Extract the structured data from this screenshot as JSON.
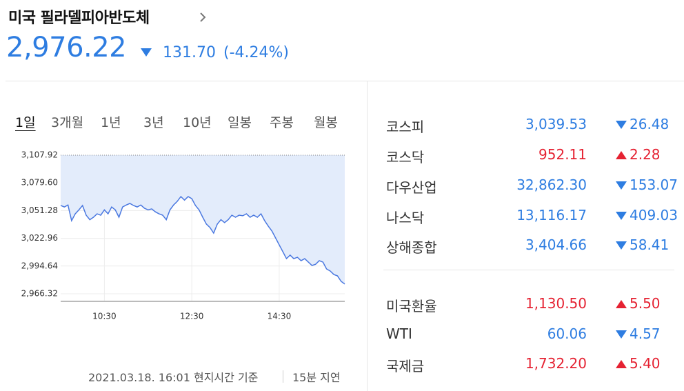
{
  "header": {
    "title": "미국 필라델피아반도체",
    "price": "2,976.22",
    "change": "131.70",
    "change_pct": "(-4.24%)",
    "direction": "down"
  },
  "tabs": [
    "1일",
    "3개월",
    "1년",
    "3년",
    "10년",
    "일봉",
    "주봉",
    "월봉"
  ],
  "chart_data": {
    "type": "line",
    "color": "#4a78e0",
    "fill": "#e3ecfb",
    "grid": true,
    "reference_line": 3107.92,
    "categories": [
      null,
      null,
      null,
      null,
      null,
      null,
      null,
      null,
      null,
      null,
      null,
      null,
      "10:30",
      null,
      null,
      null,
      null,
      null,
      null,
      null,
      null,
      null,
      null,
      null,
      null,
      null,
      null,
      null,
      null,
      null,
      null,
      null,
      null,
      null,
      null,
      null,
      "12:30",
      null,
      null,
      null,
      null,
      null,
      null,
      null,
      null,
      null,
      null,
      null,
      null,
      null,
      null,
      null,
      null,
      null,
      null,
      null,
      null,
      null,
      null,
      null,
      "14:30",
      null,
      null,
      null,
      null,
      null,
      null,
      null,
      null,
      null,
      null,
      null,
      null,
      null,
      null,
      null,
      null,
      null,
      null
    ],
    "values": [
      3056.5,
      3055,
      3057,
      3041,
      3048,
      3052,
      3056.5,
      3046.6,
      3042,
      3044.5,
      3048,
      3046.6,
      3052,
      3048,
      3055,
      3052,
      3044.5,
      3055,
      3057,
      3058.6,
      3056.5,
      3055,
      3057,
      3053.7,
      3052,
      3053,
      3050,
      3048,
      3046.6,
      3042,
      3052,
      3057,
      3060.7,
      3065.6,
      3062,
      3065.6,
      3063.5,
      3056.5,
      3052,
      3044.5,
      3037.5,
      3034,
      3028.3,
      3037.5,
      3042,
      3039,
      3042,
      3046.6,
      3044.5,
      3046.6,
      3046,
      3048,
      3044.5,
      3046.6,
      3044.5,
      3048,
      3041,
      3035.4,
      3030.4,
      3023.4,
      3016.3,
      3009.3,
      3002.2,
      3005.8,
      3002.2,
      3003.6,
      3000.1,
      3002.2,
      2998.7,
      2995.2,
      2996.5,
      3000.1,
      2998.7,
      2991.7,
      2989.6,
      2986,
      2984.6,
      2979,
      2976.22
    ],
    "ylim": [
      2958.57,
      3107.92
    ],
    "yticks": [
      {
        "value": 2966.32,
        "label": "2,966.32"
      },
      {
        "value": 2994.64,
        "label": "2,994.64"
      },
      {
        "value": 3022.96,
        "label": "3,022.96"
      },
      {
        "value": 3051.28,
        "label": "3,051.28"
      },
      {
        "value": 3079.6,
        "label": "3,079.60"
      },
      {
        "value": 3107.92,
        "label": "3,107.92"
      }
    ]
  },
  "footer": {
    "timestamp": "2021.03.18. 16:01 현지시간 기준",
    "delay": "15분 지연"
  },
  "markets": {
    "group1": [
      {
        "name": "코스피",
        "value": "3,039.53",
        "change": "26.48",
        "direction": "down"
      },
      {
        "name": "코스닥",
        "value": "952.11",
        "change": "2.28",
        "direction": "up"
      },
      {
        "name": "다우산업",
        "value": "32,862.30",
        "change": "153.07",
        "direction": "down"
      },
      {
        "name": "나스닥",
        "value": "13,116.17",
        "change": "409.03",
        "direction": "down"
      },
      {
        "name": "상해종합",
        "value": "3,404.66",
        "change": "58.41",
        "direction": "down"
      }
    ],
    "group2": [
      {
        "name": "미국환율",
        "value": "1,130.50",
        "change": "5.50",
        "direction": "up"
      },
      {
        "name": "WTI",
        "value": "60.06",
        "change": "4.57",
        "direction": "down"
      },
      {
        "name": "국제금",
        "value": "1,732.20",
        "change": "5.40",
        "direction": "up"
      }
    ]
  }
}
